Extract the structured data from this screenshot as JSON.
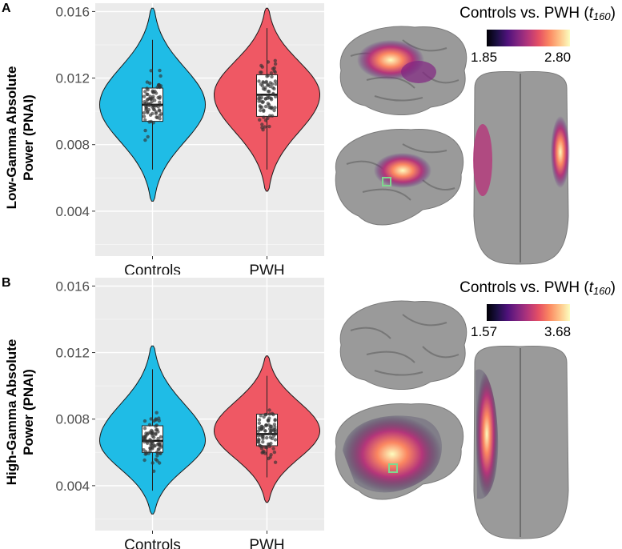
{
  "panel_a": {
    "letter": "A",
    "ylabel": [
      "Low-Gamma Absolute",
      "Power (PNAI)"
    ],
    "colorbar": {
      "title_prefix": "Controls vs. PWH (",
      "title_var": "t",
      "title_sub": "160",
      "title_suffix": ")",
      "min_label": "1.85",
      "max_label": "2.80"
    }
  },
  "panel_b": {
    "letter": "B",
    "ylabel": [
      "High-Gamma Absolute",
      "Power (PNAI)"
    ],
    "colorbar": {
      "title_prefix": "Controls vs. PWH (",
      "title_var": "t",
      "title_sub": "160",
      "title_suffix": ")",
      "min_label": "1.57",
      "max_label": "3.68"
    }
  },
  "colors": {
    "controls": "#1fbce6",
    "pwh": "#ef5864",
    "plot_bg": "#ebebeb",
    "grid": "#ffffff",
    "colormap": [
      "#000004",
      "#1c1044",
      "#4f127b",
      "#812581",
      "#b5367a",
      "#e55064",
      "#fb8761",
      "#fec287",
      "#fcfdbf"
    ]
  },
  "chart_data": [
    {
      "type": "violin",
      "panel": "A",
      "categories": [
        "Controls",
        "PWH"
      ],
      "ylabel": "Low-Gamma Absolute Power (PNAI)",
      "yticks": [
        "0.004",
        "0.008",
        "0.012",
        "0.016"
      ],
      "ylim": [
        0.0013,
        0.0165
      ],
      "grid": true,
      "series": [
        {
          "name": "Controls",
          "min": 0.0046,
          "q1": 0.0094,
          "median": 0.0104,
          "q3": 0.0114,
          "max": 0.0162,
          "whisker_low": 0.0065,
          "whisker_high": 0.0143,
          "mode": 0.0104
        },
        {
          "name": "PWH",
          "min": 0.0052,
          "q1": 0.0097,
          "median": 0.011,
          "q3": 0.0122,
          "max": 0.0162,
          "whisker_low": 0.0065,
          "whisker_high": 0.015,
          "mode": 0.011
        }
      ]
    },
    {
      "type": "violin",
      "panel": "B",
      "categories": [
        "Controls",
        "PWH"
      ],
      "ylabel": "High-Gamma Absolute Power (PNAI)",
      "yticks": [
        "0.004",
        "0.008",
        "0.012",
        "0.016"
      ],
      "ylim": [
        0.0013,
        0.0165
      ],
      "grid": true,
      "series": [
        {
          "name": "Controls",
          "min": 0.0023,
          "q1": 0.006,
          "median": 0.0067,
          "q3": 0.0076,
          "max": 0.0124,
          "whisker_low": 0.0037,
          "whisker_high": 0.011,
          "mode": 0.0067
        },
        {
          "name": "PWH",
          "min": 0.003,
          "q1": 0.0064,
          "median": 0.0071,
          "q3": 0.0083,
          "max": 0.0118,
          "whisker_low": 0.0045,
          "whisker_high": 0.0106,
          "mode": 0.0073
        }
      ]
    }
  ]
}
